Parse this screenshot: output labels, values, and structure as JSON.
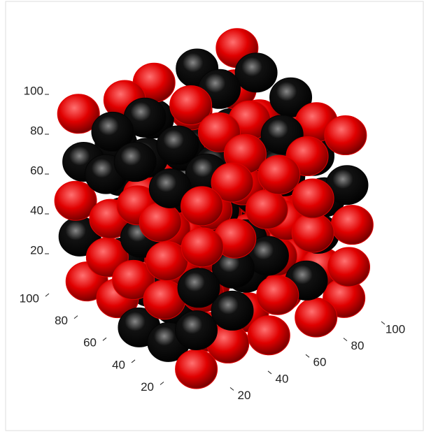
{
  "chart_data": {
    "type": "isosurface3d",
    "xlim": [
      0,
      100
    ],
    "ylim": [
      0,
      100
    ],
    "zlim": [
      0,
      100
    ],
    "xticks": [
      20,
      40,
      60,
      80,
      100
    ],
    "yticks": [
      20,
      40,
      60,
      80,
      100
    ],
    "zticks": [
      20,
      40,
      60,
      80,
      100
    ],
    "colors": [
      "#e00000",
      "#050505"
    ]
  }
}
